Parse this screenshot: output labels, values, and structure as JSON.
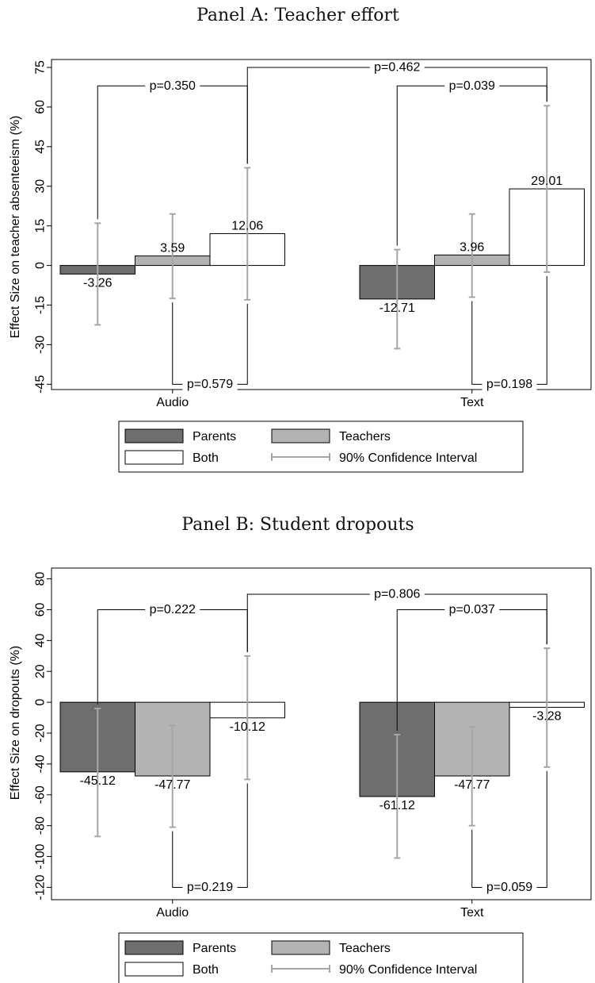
{
  "chart_data": [
    {
      "type": "bar",
      "title": "Panel A: Teacher effort",
      "ylabel": "Effect Size on teacher absenteeism (%)",
      "categories": [
        "Audio",
        "Text"
      ],
      "yticks": [
        75,
        60,
        45,
        30,
        15,
        0,
        -15,
        -30,
        -45
      ],
      "ylim": [
        -47,
        78
      ],
      "series": [
        {
          "name": "Parents",
          "color": "#6e6e6e",
          "values": [
            -3.26,
            -12.71
          ],
          "ci_low": [
            -22.5,
            -31.5
          ],
          "ci_high": [
            16.0,
            6.0
          ]
        },
        {
          "name": "Teachers",
          "color": "#b3b3b3",
          "values": [
            3.59,
            3.96
          ],
          "ci_low": [
            -12.5,
            -12.0
          ],
          "ci_high": [
            19.5,
            19.5
          ]
        },
        {
          "name": "Both",
          "color": "#ffffff",
          "values": [
            12.06,
            29.01
          ],
          "ci_low": [
            -13.0,
            -2.5
          ],
          "ci_high": [
            37.0,
            60.5
          ]
        }
      ],
      "value_labels": [
        [
          "-3.26",
          "-12.71"
        ],
        [
          "3.59",
          "3.96"
        ],
        [
          "12.06",
          "29.01"
        ]
      ],
      "pvalue_brackets": [
        {
          "text": "p=0.350",
          "from": [
            0,
            "Parents"
          ],
          "to": [
            0,
            "Both"
          ],
          "position": "above",
          "level": 68
        },
        {
          "text": "p=0.462",
          "from": [
            0,
            "Both"
          ],
          "to": [
            1,
            "Both"
          ],
          "position": "above",
          "level": 75
        },
        {
          "text": "p=0.039",
          "from": [
            1,
            "Parents"
          ],
          "to": [
            1,
            "Both"
          ],
          "position": "above",
          "level": 68
        },
        {
          "text": "p=0.579",
          "from": [
            0,
            "Teachers"
          ],
          "to": [
            0,
            "Both"
          ],
          "position": "below",
          "level": -45
        },
        {
          "text": "p=0.198",
          "from": [
            1,
            "Teachers"
          ],
          "to": [
            1,
            "Both"
          ],
          "position": "below",
          "level": -45
        }
      ],
      "legend": {
        "placement": "bottom",
        "entries": [
          "Parents",
          "Teachers",
          "Both",
          "90% Confidence Interval"
        ]
      }
    },
    {
      "type": "bar",
      "title": "Panel B: Student dropouts",
      "ylabel": "Effect Size on dropouts (%)",
      "categories": [
        "Audio",
        "Text"
      ],
      "yticks": [
        80,
        60,
        40,
        20,
        0,
        -20,
        -40,
        -60,
        -80,
        -100,
        -120
      ],
      "ylim": [
        -128,
        87
      ],
      "series": [
        {
          "name": "Parents",
          "color": "#6e6e6e",
          "values": [
            -45.12,
            -61.12
          ],
          "ci_low": [
            -87,
            -101
          ],
          "ci_high": [
            -4,
            -21
          ]
        },
        {
          "name": "Teachers",
          "color": "#b3b3b3",
          "values": [
            -47.77,
            -47.77
          ],
          "ci_low": [
            -81,
            -80
          ],
          "ci_high": [
            -15,
            -16
          ]
        },
        {
          "name": "Both",
          "color": "#ffffff",
          "values": [
            -10.12,
            -3.28
          ],
          "ci_low": [
            -50,
            -42
          ],
          "ci_high": [
            30,
            35
          ]
        }
      ],
      "value_labels": [
        [
          "-45.12",
          "-61.12"
        ],
        [
          "-47.77",
          "-47.77"
        ],
        [
          "-10.12",
          "-3.28"
        ]
      ],
      "pvalue_brackets": [
        {
          "text": "p=0.222",
          "from": [
            0,
            "Parents"
          ],
          "to": [
            0,
            "Both"
          ],
          "position": "above",
          "level": 60
        },
        {
          "text": "p=0.806",
          "from": [
            0,
            "Both"
          ],
          "to": [
            1,
            "Both"
          ],
          "position": "above",
          "level": 70
        },
        {
          "text": "p=0.037",
          "from": [
            1,
            "Parents"
          ],
          "to": [
            1,
            "Both"
          ],
          "position": "above",
          "level": 60
        },
        {
          "text": "p=0.219",
          "from": [
            0,
            "Teachers"
          ],
          "to": [
            0,
            "Both"
          ],
          "position": "below",
          "level": -120
        },
        {
          "text": "p=0.059",
          "from": [
            1,
            "Teachers"
          ],
          "to": [
            1,
            "Both"
          ],
          "position": "below",
          "level": -120
        }
      ],
      "legend": {
        "placement": "bottom",
        "entries": [
          "Parents",
          "Teachers",
          "Both",
          "90% Confidence Interval"
        ]
      }
    }
  ]
}
